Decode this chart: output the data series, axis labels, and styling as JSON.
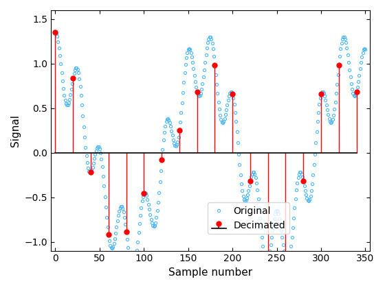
{
  "title": "",
  "xlabel": "Sample number",
  "ylabel": "Signal",
  "xlim": [
    -5,
    355
  ],
  "ylim": [
    -1.1,
    1.6
  ],
  "original_color": "#4db8ff",
  "decimated_stem_color": "red",
  "decimated_marker_color": "red",
  "legend_labels": [
    "Original",
    "Decimated"
  ],
  "decimate_factor": 20,
  "n_original": 350,
  "f1": 0.006,
  "f2": 0.04,
  "amp1": 1.0,
  "amp2": 0.35
}
